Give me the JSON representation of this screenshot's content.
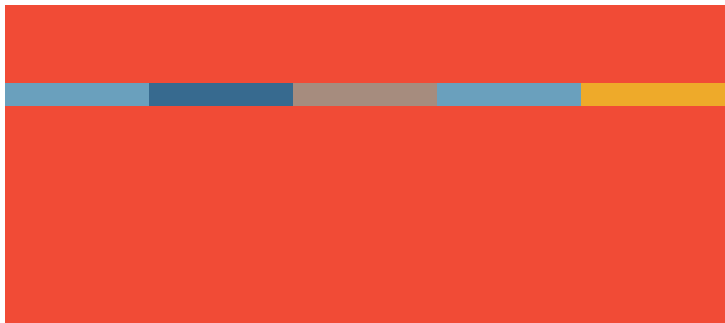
{
  "palette": {
    "page_background": "#ffffff",
    "canvas_background": "#f14b36"
  },
  "stripe": {
    "segments": [
      {
        "color": "#6aa0bd"
      },
      {
        "color": "#376a8f"
      },
      {
        "color": "#a68c7e"
      },
      {
        "color": "#6aa0bd"
      },
      {
        "color": "#eeaa2a"
      }
    ]
  }
}
